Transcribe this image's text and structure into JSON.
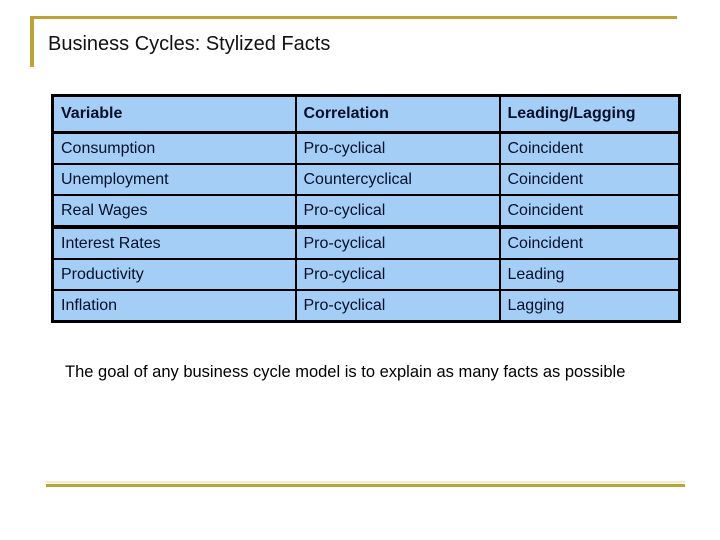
{
  "slide": {
    "title": "Business Cycles: Stylized Facts",
    "table": {
      "headers": [
        "Variable",
        "Correlation",
        "Leading/Lagging"
      ],
      "rows": [
        [
          "Consumption",
          "Pro-cyclical",
          "Coincident"
        ],
        [
          "Unemployment",
          "Countercyclical",
          "Coincident"
        ],
        [
          "Real Wages",
          "Pro-cyclical",
          "Coincident"
        ],
        [
          "Interest Rates",
          "Pro-cyclical",
          "Coincident"
        ],
        [
          "Productivity",
          "Pro-cyclical",
          "Leading"
        ],
        [
          "Inflation",
          "Pro-cyclical",
          "Lagging"
        ]
      ],
      "group_break_row_index": 3
    },
    "note": "The goal of any business cycle model is to explain as many facts as possible",
    "colors": {
      "accent_gold": "#BFA136",
      "accent_gold_light": "#F3EDC6",
      "table_fill": "#A5CEF6",
      "table_border": "#000000",
      "text": "#000000"
    }
  }
}
